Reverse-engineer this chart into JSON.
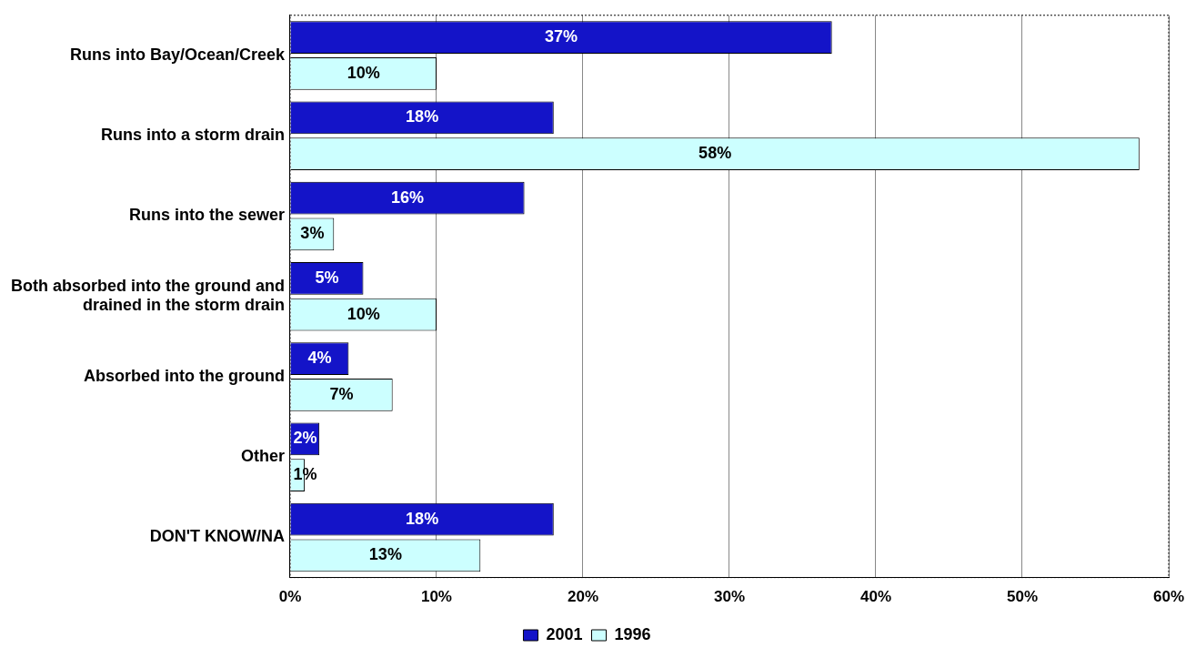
{
  "chart_data": {
    "type": "bar",
    "orientation": "horizontal",
    "categories": [
      "Runs into Bay/Ocean/Creek",
      "Runs into a storm drain",
      "Runs into the sewer",
      "Both absorbed into the ground and drained in the storm drain",
      "Absorbed into the ground",
      "Other",
      "DON'T KNOW/NA"
    ],
    "series": [
      {
        "name": "2001",
        "color": "#1414c8",
        "values": [
          37,
          18,
          16,
          5,
          4,
          2,
          18
        ],
        "value_labels": [
          "37%",
          "18%",
          "16%",
          "5%",
          "4%",
          "2%",
          "18%"
        ]
      },
      {
        "name": "1996",
        "color": "#ccffff",
        "values": [
          10,
          58,
          3,
          10,
          7,
          1,
          13
        ],
        "value_labels": [
          "10%",
          "58%",
          "3%",
          "10%",
          "7%",
          "1%",
          "13%"
        ]
      }
    ],
    "xlim": [
      0,
      60
    ],
    "xticks": [
      {
        "value": 0,
        "label": "0%"
      },
      {
        "value": 10,
        "label": "10%"
      },
      {
        "value": 20,
        "label": "20%"
      },
      {
        "value": 30,
        "label": "30%"
      },
      {
        "value": 40,
        "label": "40%"
      },
      {
        "value": 50,
        "label": "50%"
      },
      {
        "value": 60,
        "label": "60%"
      }
    ],
    "grid": "x",
    "legend": "bottom"
  }
}
